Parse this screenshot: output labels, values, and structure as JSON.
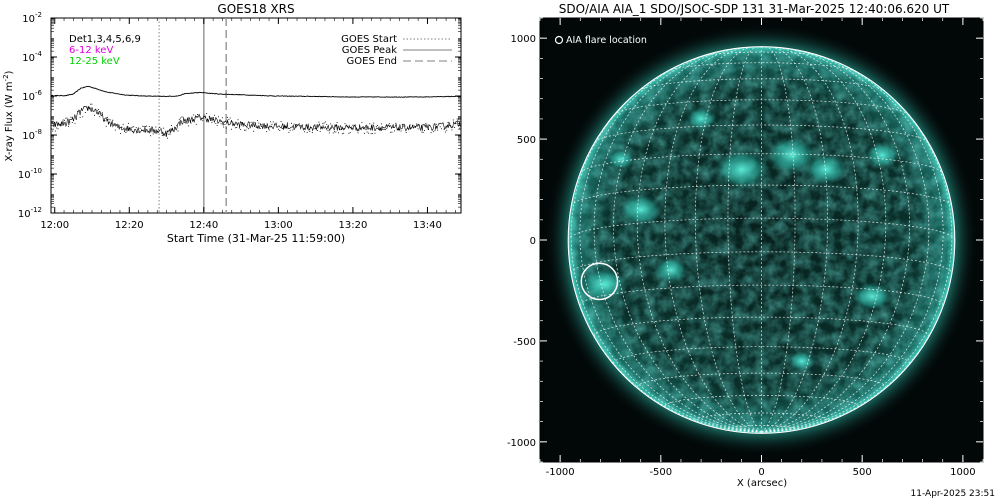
{
  "footer": {
    "timestamp": "11-Apr-2025 23:51"
  },
  "chart_data": [
    {
      "type": "line",
      "title": "GOES18 XRS",
      "xlabel": "Start Time (31-Mar-25 11:59:00)",
      "ylabel": "X-ray Flux (W m",
      "ylabel_sup": "-2",
      "ylabel_close": ")",
      "yscale": "log",
      "ylim_exp": [
        -12,
        -2
      ],
      "xlim_minutes": [
        0,
        110
      ],
      "xticks": [
        {
          "label": "12:00",
          "minute": 1
        },
        {
          "label": "12:20",
          "minute": 21
        },
        {
          "label": "12:40",
          "minute": 41
        },
        {
          "label": "13:00",
          "minute": 61
        },
        {
          "label": "13:20",
          "minute": 81
        },
        {
          "label": "13:40",
          "minute": 101
        }
      ],
      "yticks": [
        {
          "base": "10",
          "exp": "-2",
          "value_exp": -2
        },
        {
          "base": "10",
          "exp": "-4",
          "value_exp": -4
        },
        {
          "base": "10",
          "exp": "-6",
          "value_exp": -6
        },
        {
          "base": "10",
          "exp": "-8",
          "value_exp": -8
        },
        {
          "base": "10",
          "exp": "-10",
          "value_exp": -10
        },
        {
          "base": "10",
          "exp": "-12",
          "value_exp": -12
        }
      ],
      "channel_legend": [
        {
          "label": "Det1,3,4,5,6,9",
          "color": "#000000"
        },
        {
          "label": "6-12 keV",
          "color": "#e000e0"
        },
        {
          "label": "12-25 keV",
          "color": "#00d000"
        }
      ],
      "line_legend": [
        {
          "label": "GOES Start",
          "style": "dotted",
          "color": "#999999"
        },
        {
          "label": "GOES Peak",
          "style": "solid",
          "color": "#999999"
        },
        {
          "label": "GOES End",
          "style": "dashed",
          "color": "#999999"
        }
      ],
      "event_lines_minutes": {
        "start": 29,
        "peak": 41,
        "end": 47
      },
      "series": [
        {
          "points_minute_logflux": [
            [
              0,
              -5.98
            ],
            [
              4,
              -5.98
            ],
            [
              6,
              -5.9
            ],
            [
              8,
              -5.6
            ],
            [
              10,
              -5.5
            ],
            [
              12,
              -5.62
            ],
            [
              15,
              -5.8
            ],
            [
              20,
              -5.95
            ],
            [
              25,
              -6.0
            ],
            [
              30,
              -6.02
            ],
            [
              34,
              -6.0
            ],
            [
              36,
              -5.88
            ],
            [
              40,
              -5.82
            ],
            [
              42,
              -5.85
            ],
            [
              45,
              -5.9
            ],
            [
              50,
              -5.93
            ],
            [
              60,
              -6.0
            ],
            [
              70,
              -6.02
            ],
            [
              80,
              -6.05
            ],
            [
              90,
              -6.05
            ],
            [
              100,
              -6.05
            ],
            [
              105,
              -6.03
            ],
            [
              110,
              -6.02
            ]
          ]
        },
        {
          "points_minute_logflux": [
            [
              0,
              -7.5
            ],
            [
              4,
              -7.4
            ],
            [
              6,
              -7.2
            ],
            [
              8,
              -6.8
            ],
            [
              10,
              -6.6
            ],
            [
              12,
              -6.75
            ],
            [
              15,
              -7.3
            ],
            [
              18,
              -7.6
            ],
            [
              22,
              -7.72
            ],
            [
              26,
              -7.75
            ],
            [
              29,
              -7.8
            ],
            [
              31,
              -7.9
            ],
            [
              33,
              -7.7
            ],
            [
              35,
              -7.3
            ],
            [
              38,
              -7.2
            ],
            [
              40,
              -7.1
            ],
            [
              42,
              -7.15
            ],
            [
              45,
              -7.3
            ],
            [
              50,
              -7.45
            ],
            [
              60,
              -7.55
            ],
            [
              70,
              -7.6
            ],
            [
              80,
              -7.62
            ],
            [
              90,
              -7.62
            ],
            [
              100,
              -7.62
            ],
            [
              105,
              -7.55
            ],
            [
              110,
              -7.4
            ]
          ]
        }
      ]
    },
    {
      "type": "image-map",
      "title": "SDO/AIA AIA_1 SDO/JSOC-SDP 131 31-Mar-2025 12:40:06.620 UT",
      "xlabel": "X (arcsec)",
      "xlim": [
        -1100,
        1100
      ],
      "ylim": [
        -1100,
        1100
      ],
      "xticks": [
        -1000,
        -500,
        0,
        500,
        1000
      ],
      "yticks": [
        -1000,
        -500,
        0,
        500,
        1000
      ],
      "xtick_labels": [
        "-1000",
        "-500",
        "0",
        "500",
        "1000"
      ],
      "ytick_labels": [
        "-1000",
        "-500",
        "0",
        "500",
        "1000"
      ],
      "solar_radius_arcsec": 960,
      "legend": "AIA flare location",
      "flare_location_arcsec": [
        -805,
        -205
      ],
      "flare_marker_radius_arcsec": 90,
      "grid_spacing_deg": 10,
      "colors": {
        "background": "#020808",
        "disk": "#0b3b36",
        "active": "#3ce6d2",
        "grid": "#ffffff"
      }
    }
  ]
}
